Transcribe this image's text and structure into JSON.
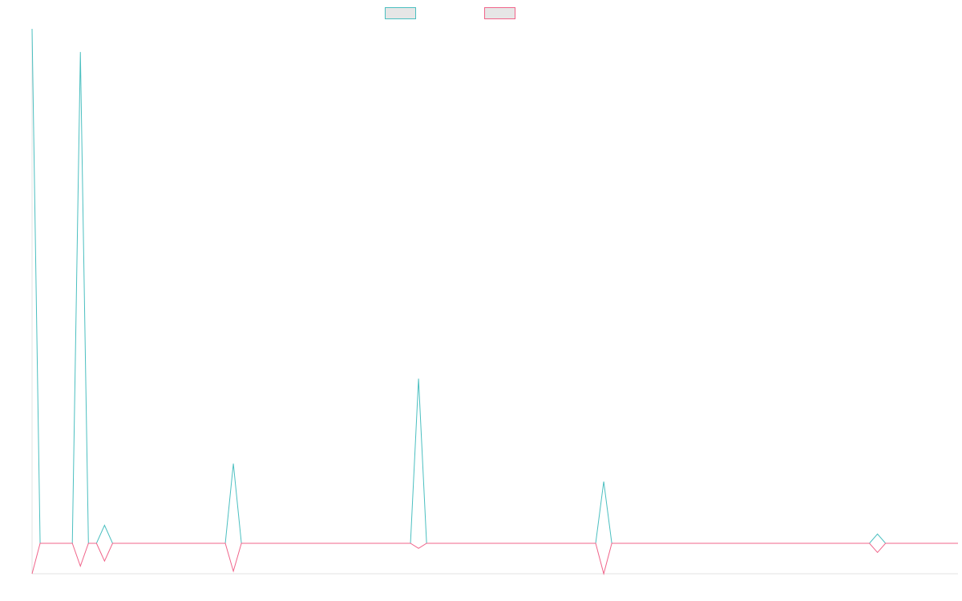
{
  "colors": {
    "series_a": "#4bbfc0",
    "series_b": "#f0648a",
    "axis": "#e3e3e3",
    "legend_fill": "#e6e6e6"
  },
  "chart_data": {
    "type": "line",
    "title": "",
    "xlabel": "",
    "ylabel": "",
    "grid": false,
    "legend_position": "top-center",
    "n_points": 116,
    "ylim": [
      -0.06,
      1.0
    ],
    "series": [
      {
        "color": "#4bbfc0",
        "spikes": [
          [
            0,
            1.0
          ],
          [
            6,
            0.955
          ],
          [
            8,
            0.0
          ],
          [
            9,
            0.035
          ],
          [
            25,
            0.155
          ],
          [
            48,
            0.32
          ],
          [
            71,
            0.12
          ],
          [
            105,
            0.018
          ]
        ]
      },
      {
        "color": "#f0648a",
        "spikes": [
          [
            0,
            -0.06
          ],
          [
            6,
            -0.045
          ],
          [
            8,
            0.0
          ],
          [
            9,
            -0.035
          ],
          [
            25,
            -0.055
          ],
          [
            48,
            -0.01
          ],
          [
            71,
            -0.06
          ],
          [
            105,
            -0.018
          ]
        ]
      }
    ]
  }
}
